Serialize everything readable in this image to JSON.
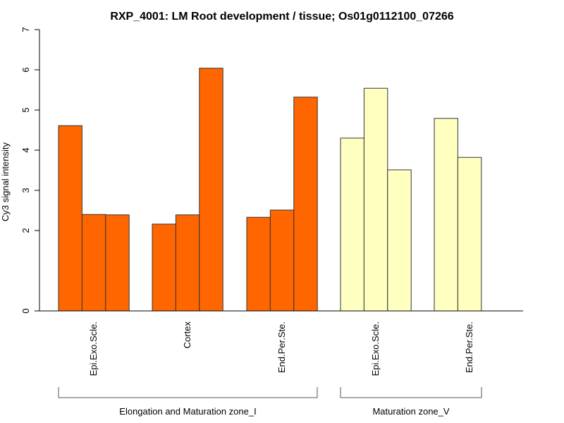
{
  "chart_data": {
    "type": "bar",
    "title": "RXP_4001: LM Root development / tissue; Os01g0112100_07266",
    "xlabel": "",
    "ylabel": "Cy3 signal intensity",
    "ylim": [
      0,
      7
    ],
    "yticks": [
      "0",
      "2",
      "3",
      "4",
      "5",
      "6",
      "7"
    ],
    "ytick_values": [
      0,
      2,
      3,
      4,
      5,
      6,
      7
    ],
    "grid": false,
    "categories": [
      "Epi.Exo.Scle.",
      "Cortex",
      "End.Per.Ste.",
      "Epi.Exo.Scle.",
      "End.Per.Ste."
    ],
    "groups": [
      {
        "name": "Elongation and Maturation zone_I",
        "color": "#FF6600",
        "categories": [
          0,
          1,
          2
        ]
      },
      {
        "name": "Maturation zone_V",
        "color": "#FFFFC0",
        "categories": [
          3,
          4
        ]
      }
    ],
    "bars": [
      {
        "category": 0,
        "values": [
          4.61,
          2.4,
          2.39
        ]
      },
      {
        "category": 1,
        "values": [
          2.16,
          2.39,
          6.04
        ]
      },
      {
        "category": 2,
        "values": [
          2.33,
          2.51,
          5.32
        ]
      },
      {
        "category": 3,
        "values": [
          4.3,
          5.54,
          3.51
        ]
      },
      {
        "category": 4,
        "values": [
          4.79,
          3.82
        ]
      }
    ]
  }
}
